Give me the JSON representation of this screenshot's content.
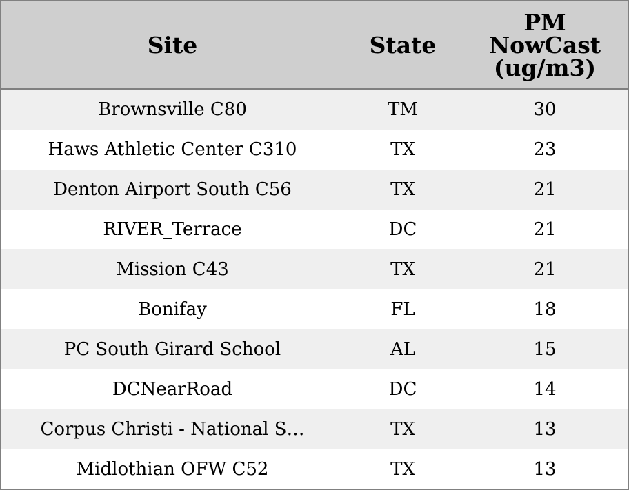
{
  "chart_data": {
    "type": "table",
    "columns": [
      "Site",
      "State",
      "PM NowCast (ug/m3)"
    ],
    "header_lines": {
      "site": "Site",
      "state": "State",
      "pm": [
        "PM",
        "NowCast",
        "(ug/m3)"
      ]
    },
    "rows": [
      {
        "site": "Brownsville C80",
        "state": "TM",
        "pm": 30
      },
      {
        "site": "Haws Athletic Center C310",
        "state": "TX",
        "pm": 23
      },
      {
        "site": "Denton Airport South C56",
        "state": "TX",
        "pm": 21
      },
      {
        "site": "RIVER_Terrace",
        "state": "DC",
        "pm": 21
      },
      {
        "site": "Mission C43",
        "state": "TX",
        "pm": 21
      },
      {
        "site": "Bonifay",
        "state": "FL",
        "pm": 18
      },
      {
        "site": "PC South Girard School",
        "state": "AL",
        "pm": 15
      },
      {
        "site": "DCNearRoad",
        "state": "DC",
        "pm": 14
      },
      {
        "site": "Corpus Christi - National S…",
        "state": "TX",
        "pm": 13
      },
      {
        "site": "Midlothian OFW C52",
        "state": "TX",
        "pm": 13
      }
    ],
    "colors": {
      "header_bg": "#cfcfcf",
      "row_shaded": "#efefef",
      "row_plain": "#ffffff",
      "border": "#808080"
    }
  }
}
